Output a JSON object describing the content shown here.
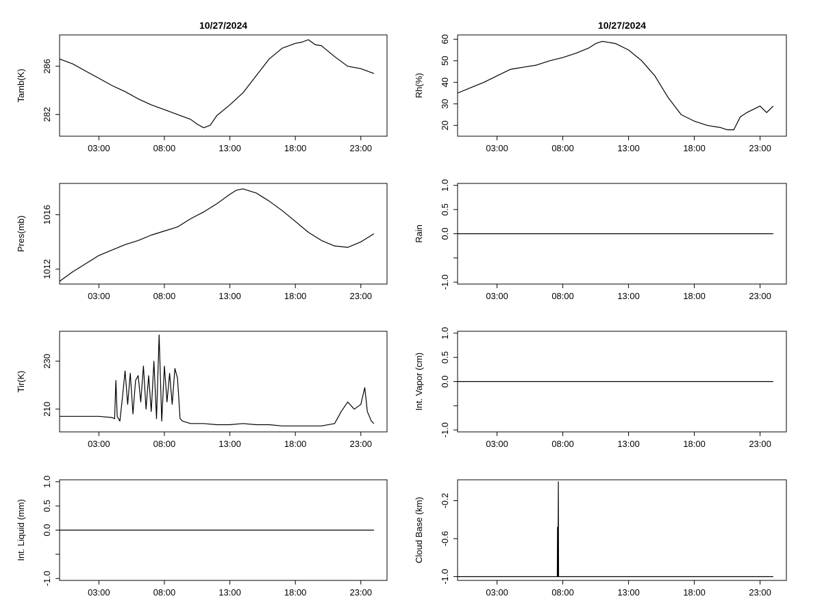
{
  "chart_data": [
    {
      "id": "tamb",
      "type": "line",
      "title": "10/27/2024",
      "xlabel": "",
      "ylabel": "Tamb(K)",
      "xlim": [
        0.0,
        25.0
      ],
      "ylim": [
        280.2,
        288.6
      ],
      "x_ticks": [
        3,
        8,
        13,
        18,
        23
      ],
      "x_tick_labels": [
        "03:00",
        "08:00",
        "13:00",
        "18:00",
        "23:00"
      ],
      "y_ticks": [
        282,
        286
      ],
      "y_tick_labels": [
        "282",
        "286"
      ],
      "grid": false,
      "series": [
        {
          "x": [
            0,
            1,
            2,
            3,
            4,
            5,
            6,
            7,
            8,
            9,
            10,
            10.5,
            11,
            11.5,
            12,
            13,
            14,
            15,
            16,
            17,
            18,
            18.5,
            19,
            19.5,
            20,
            21,
            22,
            23,
            24
          ],
          "y": [
            286.6,
            286.2,
            285.6,
            285.0,
            284.4,
            283.9,
            283.3,
            282.8,
            282.4,
            282.0,
            281.6,
            281.2,
            280.9,
            281.1,
            281.9,
            282.8,
            283.8,
            285.2,
            286.6,
            287.5,
            287.9,
            288.0,
            288.2,
            287.8,
            287.7,
            286.8,
            286.0,
            285.8,
            285.4
          ]
        }
      ]
    },
    {
      "id": "rh",
      "type": "line",
      "title": "10/27/2024",
      "xlabel": "",
      "ylabel": "Rh(%)",
      "xlim": [
        0.0,
        25.0
      ],
      "ylim": [
        15,
        62
      ],
      "x_ticks": [
        3,
        8,
        13,
        18,
        23
      ],
      "x_tick_labels": [
        "03:00",
        "08:00",
        "13:00",
        "18:00",
        "23:00"
      ],
      "y_ticks": [
        20,
        30,
        40,
        50,
        60
      ],
      "y_tick_labels": [
        "20",
        "30",
        "40",
        "50",
        "60"
      ],
      "grid": false,
      "series": [
        {
          "x": [
            0,
            1,
            2,
            3,
            4,
            5,
            6,
            7,
            8,
            9,
            10,
            10.5,
            11,
            12,
            13,
            14,
            15,
            16,
            17,
            18,
            19,
            20,
            20.5,
            21,
            21.5,
            22,
            23,
            23.5,
            24
          ],
          "y": [
            35,
            37.5,
            40,
            43,
            46,
            47,
            48,
            50,
            51.5,
            53.5,
            56,
            58,
            59,
            58,
            55,
            50,
            43,
            33,
            25,
            22,
            20,
            19,
            18,
            18,
            24,
            26,
            29,
            26,
            29
          ]
        }
      ]
    },
    {
      "id": "pres",
      "type": "line",
      "title": "",
      "xlabel": "",
      "ylabel": "Pres(mb)",
      "xlim": [
        0.0,
        25.0
      ],
      "ylim": [
        1010.9,
        1018.3
      ],
      "x_ticks": [
        3,
        8,
        13,
        18,
        23
      ],
      "x_tick_labels": [
        "03:00",
        "08:00",
        "13:00",
        "18:00",
        "23:00"
      ],
      "y_ticks": [
        1012,
        1016
      ],
      "y_tick_labels": [
        "1012",
        "1016"
      ],
      "grid": false,
      "series": [
        {
          "x": [
            0,
            1,
            2,
            3,
            4,
            5,
            6,
            7,
            8,
            9,
            10,
            11,
            12,
            13,
            13.5,
            14,
            15,
            16,
            17,
            18,
            19,
            20,
            21,
            22,
            23,
            24
          ],
          "y": [
            1011.1,
            1011.8,
            1012.4,
            1013.0,
            1013.4,
            1013.8,
            1014.1,
            1014.5,
            1014.8,
            1015.1,
            1015.7,
            1016.2,
            1016.8,
            1017.5,
            1017.8,
            1017.9,
            1017.6,
            1017.0,
            1016.3,
            1015.5,
            1014.7,
            1014.1,
            1013.7,
            1013.6,
            1014.0,
            1014.6
          ]
        }
      ]
    },
    {
      "id": "rain",
      "type": "line",
      "title": "",
      "xlabel": "",
      "ylabel": "Rain",
      "xlim": [
        0.0,
        25.0
      ],
      "ylim": [
        -1.04,
        1.04
      ],
      "x_ticks": [
        3,
        8,
        13,
        18,
        23
      ],
      "x_tick_labels": [
        "03:00",
        "08:00",
        "13:00",
        "18:00",
        "23:00"
      ],
      "y_ticks": [
        -1.0,
        0.0,
        0.5,
        1.0
      ],
      "y_tick_labels": [
        "-1.0",
        "0.0",
        "0.5",
        "1.0"
      ],
      "extra_y_ticks": [
        -0.5
      ],
      "grid": false,
      "series": [
        {
          "x": [
            0,
            24
          ],
          "y": [
            0,
            0
          ]
        }
      ]
    },
    {
      "id": "tir",
      "type": "line",
      "title": "",
      "xlabel": "",
      "ylabel": "Tir(K)",
      "xlim": [
        0.0,
        25.0
      ],
      "ylim": [
        200.5,
        242.5
      ],
      "x_ticks": [
        3,
        8,
        13,
        18,
        23
      ],
      "x_tick_labels": [
        "03:00",
        "08:00",
        "13:00",
        "18:00",
        "23:00"
      ],
      "y_ticks": [
        210,
        230
      ],
      "y_tick_labels": [
        "210",
        "230"
      ],
      "grid": false,
      "series": [
        {
          "x": [
            0,
            1,
            2,
            3,
            4,
            4.2,
            4.3,
            4.4,
            4.6,
            4.8,
            5.0,
            5.2,
            5.4,
            5.6,
            5.8,
            6.0,
            6.2,
            6.4,
            6.6,
            6.8,
            7.0,
            7.2,
            7.4,
            7.6,
            7.8,
            8.0,
            8.2,
            8.4,
            8.6,
            8.8,
            9.0,
            9.2,
            9.4,
            10,
            11,
            12,
            13,
            14,
            15,
            16,
            17,
            18,
            19,
            20,
            21,
            21.5,
            22,
            22.5,
            23,
            23.3,
            23.5,
            23.8,
            24
          ],
          "y": [
            207,
            207,
            207,
            207,
            206.5,
            206,
            222,
            207,
            205,
            215,
            226,
            212,
            225,
            208,
            222,
            224,
            213,
            228,
            210,
            224,
            209,
            230,
            206,
            241,
            205,
            228,
            213,
            225,
            212,
            227,
            223,
            206,
            205,
            204,
            204,
            203.5,
            203.5,
            204,
            203.5,
            203.5,
            203,
            203,
            203,
            203,
            204,
            209,
            213,
            210,
            212,
            219,
            209,
            205,
            204
          ]
        }
      ]
    },
    {
      "id": "vapor",
      "type": "line",
      "title": "",
      "xlabel": "",
      "ylabel": "Int. Vapor (cm)",
      "xlim": [
        0.0,
        25.0
      ],
      "ylim": [
        -1.04,
        1.04
      ],
      "x_ticks": [
        3,
        8,
        13,
        18,
        23
      ],
      "x_tick_labels": [
        "03:00",
        "08:00",
        "13:00",
        "18:00",
        "23:00"
      ],
      "y_ticks": [
        -1.0,
        0.0,
        0.5,
        1.0
      ],
      "y_tick_labels": [
        "-1.0",
        "0.0",
        "0.5",
        "1.0"
      ],
      "extra_y_ticks": [
        -0.5
      ],
      "grid": false,
      "series": [
        {
          "x": [
            0,
            24
          ],
          "y": [
            0,
            0
          ]
        }
      ]
    },
    {
      "id": "liquid",
      "type": "line",
      "title": "",
      "xlabel": "",
      "ylabel": "Int. Liquid (mm)",
      "xlim": [
        0.0,
        25.0
      ],
      "ylim": [
        -1.04,
        1.04
      ],
      "x_ticks": [
        3,
        8,
        13,
        18,
        23
      ],
      "x_tick_labels": [
        "03:00",
        "08:00",
        "13:00",
        "18:00",
        "23:00"
      ],
      "y_ticks": [
        -1.0,
        0.0,
        0.5,
        1.0
      ],
      "y_tick_labels": [
        "-1.0",
        "0.0",
        "0.5",
        "1.0"
      ],
      "extra_y_ticks": [
        -0.5
      ],
      "grid": false,
      "series": [
        {
          "x": [
            0,
            24
          ],
          "y": [
            0,
            0
          ]
        }
      ]
    },
    {
      "id": "cloudbase",
      "type": "line",
      "title": "",
      "xlabel": "",
      "ylabel": "Cloud Base (km)",
      "xlim": [
        0.0,
        25.0
      ],
      "ylim": [
        -1.04,
        0.02
      ],
      "x_ticks": [
        3,
        8,
        13,
        18,
        23
      ],
      "x_tick_labels": [
        "03:00",
        "08:00",
        "13:00",
        "18:00",
        "23:00"
      ],
      "y_ticks": [
        -1.0,
        -0.6,
        -0.2
      ],
      "y_tick_labels": [
        "-1.0",
        "-0.6",
        "-0.2"
      ],
      "grid": false,
      "series": [
        {
          "x": [
            0,
            7.58,
            7.6,
            7.63,
            7.66,
            7.68,
            7.7,
            24
          ],
          "y": [
            -1,
            -1,
            -0.48,
            -1,
            0,
            -1,
            -1,
            -1
          ]
        }
      ]
    }
  ]
}
